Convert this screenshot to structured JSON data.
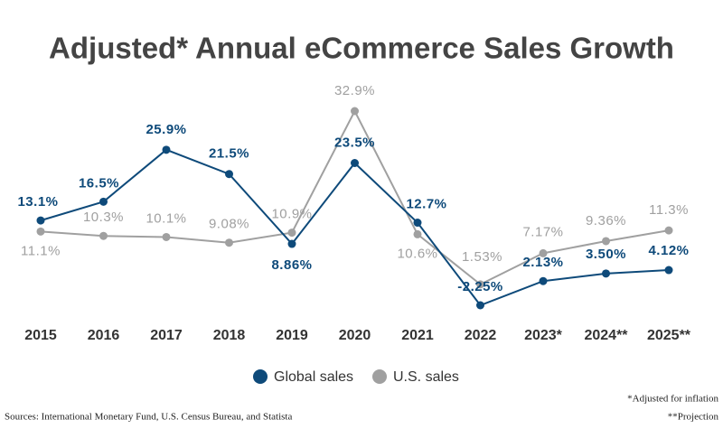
{
  "chart_data": {
    "type": "line",
    "title": "Adjusted* Annual eCommerce Sales Growth",
    "categories": [
      "2015",
      "2016",
      "2017",
      "2018",
      "2019",
      "2020",
      "2021",
      "2022",
      "2023*",
      "2024**",
      "2025**"
    ],
    "series": [
      {
        "name": "Global sales",
        "color": "#0e4a7a",
        "values": [
          13.1,
          16.5,
          25.9,
          21.5,
          8.86,
          23.5,
          12.7,
          -2.25,
          2.13,
          3.5,
          4.12
        ],
        "value_labels": [
          "13.1%",
          "16.5%",
          "25.9%",
          "21.5%",
          "8.86%",
          "23.5%",
          "12.7%",
          "-2.25%",
          "2.13%",
          "3.50%",
          "4.12%"
        ]
      },
      {
        "name": "U.S. sales",
        "color": "#a0a0a0",
        "values": [
          11.1,
          10.3,
          10.1,
          9.08,
          10.9,
          32.9,
          10.6,
          1.53,
          7.17,
          9.36,
          11.3
        ],
        "value_labels": [
          "11.1%",
          "10.3%",
          "10.1%",
          "9.08%",
          "10.9%",
          "32.9%",
          "10.6%",
          "1.53%",
          "7.17%",
          "9.36%",
          "11.3%"
        ]
      }
    ],
    "notes": [
      "*Adjusted for inflation",
      "**Projection"
    ],
    "source": "Sources: International Monetary Fund, U.S. Census Bureau, and Statista"
  }
}
